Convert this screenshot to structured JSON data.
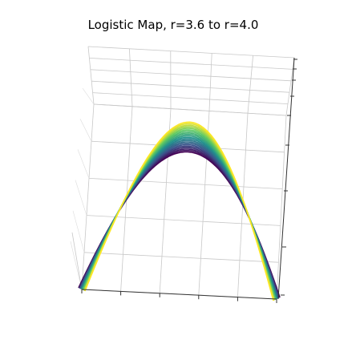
{
  "chart_data": {
    "type": "line",
    "projection": "3d",
    "title": "Logistic Map, r=3.6 to r=4.0",
    "xlabel": "",
    "ylabel": "",
    "zlabel": "",
    "grid": true,
    "legend": "none",
    "r_range": [
      3.6,
      4.0
    ],
    "x_range": [
      0,
      1
    ],
    "colormap": "viridis",
    "colormap_stops": [
      "#440154",
      "#3b528b",
      "#21918c",
      "#5ec962",
      "#fde725"
    ],
    "series_function": "x * r * (1 - x)",
    "samples_per_curve": 60,
    "curve_count": 21
  }
}
